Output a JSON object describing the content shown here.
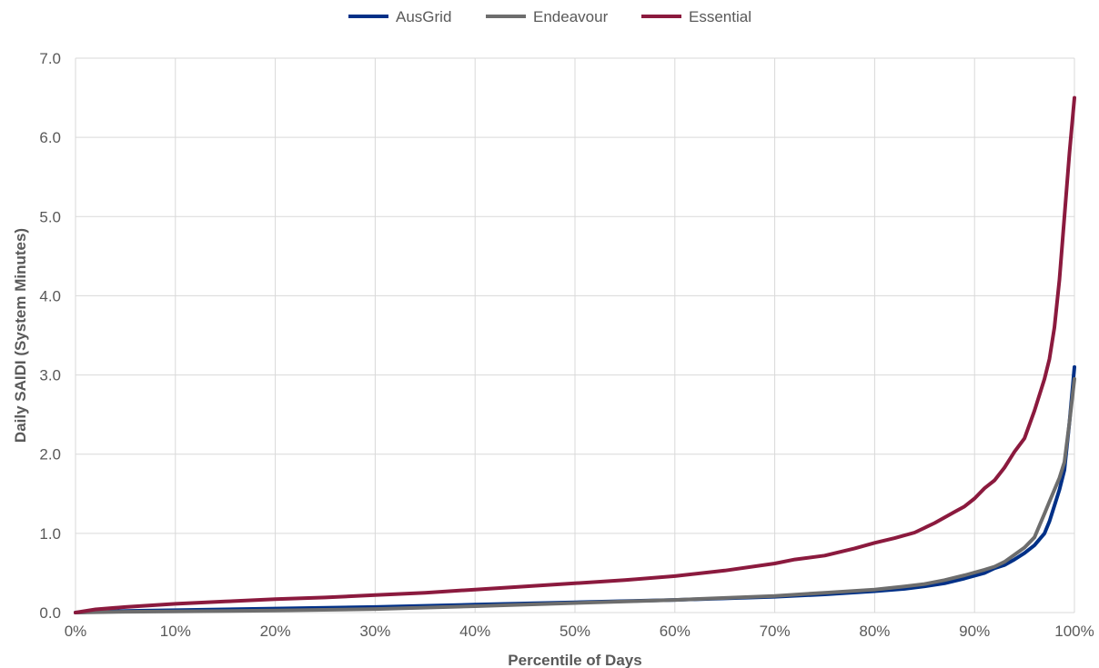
{
  "chart_data": {
    "type": "line",
    "title": "",
    "xlabel": "Percentile of Days",
    "ylabel": "Daily SAIDI (System Minutes)",
    "xlim": [
      0,
      100
    ],
    "ylim": [
      0,
      7
    ],
    "x_ticks": [
      0,
      10,
      20,
      30,
      40,
      50,
      60,
      70,
      80,
      90,
      100
    ],
    "x_tick_labels": [
      "0%",
      "10%",
      "20%",
      "30%",
      "40%",
      "50%",
      "60%",
      "70%",
      "80%",
      "90%",
      "100%"
    ],
    "y_ticks": [
      0,
      1,
      2,
      3,
      4,
      5,
      6,
      7
    ],
    "y_tick_labels": [
      "0.0",
      "1.0",
      "2.0",
      "3.0",
      "4.0",
      "5.0",
      "6.0",
      "7.0"
    ],
    "grid": true,
    "legend_position": "top-center",
    "series": [
      {
        "name": "AusGrid",
        "color": "#003087",
        "points": [
          [
            0,
            0
          ],
          [
            2,
            0.01
          ],
          [
            5,
            0.02
          ],
          [
            10,
            0.03
          ],
          [
            20,
            0.05
          ],
          [
            30,
            0.07
          ],
          [
            40,
            0.1
          ],
          [
            50,
            0.13
          ],
          [
            60,
            0.16
          ],
          [
            70,
            0.2
          ],
          [
            75,
            0.23
          ],
          [
            80,
            0.27
          ],
          [
            83,
            0.3
          ],
          [
            85,
            0.33
          ],
          [
            87,
            0.37
          ],
          [
            89,
            0.43
          ],
          [
            91,
            0.5
          ],
          [
            92,
            0.56
          ],
          [
            93,
            0.6
          ],
          [
            94,
            0.67
          ],
          [
            95,
            0.75
          ],
          [
            96,
            0.85
          ],
          [
            97,
            1.0
          ],
          [
            97.5,
            1.15
          ],
          [
            98,
            1.35
          ],
          [
            98.5,
            1.55
          ],
          [
            99,
            1.8
          ],
          [
            99.5,
            2.4
          ],
          [
            100,
            3.1
          ]
        ]
      },
      {
        "name": "Endeavour",
        "color": "#6d6d6d",
        "points": [
          [
            0,
            0
          ],
          [
            2,
            0.005
          ],
          [
            5,
            0.01
          ],
          [
            10,
            0.015
          ],
          [
            20,
            0.025
          ],
          [
            30,
            0.045
          ],
          [
            40,
            0.08
          ],
          [
            50,
            0.12
          ],
          [
            60,
            0.16
          ],
          [
            70,
            0.21
          ],
          [
            75,
            0.25
          ],
          [
            80,
            0.29
          ],
          [
            83,
            0.33
          ],
          [
            85,
            0.36
          ],
          [
            87,
            0.41
          ],
          [
            89,
            0.47
          ],
          [
            91,
            0.54
          ],
          [
            92,
            0.58
          ],
          [
            93,
            0.64
          ],
          [
            94,
            0.73
          ],
          [
            95,
            0.82
          ],
          [
            96,
            0.95
          ],
          [
            96.5,
            1.1
          ],
          [
            97,
            1.25
          ],
          [
            97.5,
            1.4
          ],
          [
            98,
            1.55
          ],
          [
            98.5,
            1.7
          ],
          [
            99,
            1.9
          ],
          [
            99.5,
            2.4
          ],
          [
            100,
            2.95
          ]
        ]
      },
      {
        "name": "Essential",
        "color": "#8b1a3e",
        "points": [
          [
            0,
            0
          ],
          [
            2,
            0.04
          ],
          [
            5,
            0.07
          ],
          [
            10,
            0.11
          ],
          [
            15,
            0.14
          ],
          [
            20,
            0.17
          ],
          [
            25,
            0.19
          ],
          [
            30,
            0.22
          ],
          [
            35,
            0.25
          ],
          [
            40,
            0.29
          ],
          [
            45,
            0.33
          ],
          [
            50,
            0.37
          ],
          [
            55,
            0.41
          ],
          [
            60,
            0.46
          ],
          [
            65,
            0.53
          ],
          [
            70,
            0.62
          ],
          [
            72,
            0.67
          ],
          [
            75,
            0.72
          ],
          [
            78,
            0.81
          ],
          [
            80,
            0.88
          ],
          [
            82,
            0.94
          ],
          [
            84,
            1.01
          ],
          [
            86,
            1.13
          ],
          [
            88,
            1.27
          ],
          [
            89,
            1.34
          ],
          [
            90,
            1.44
          ],
          [
            91,
            1.57
          ],
          [
            92,
            1.67
          ],
          [
            93,
            1.83
          ],
          [
            94,
            2.03
          ],
          [
            95,
            2.2
          ],
          [
            96,
            2.55
          ],
          [
            97,
            2.95
          ],
          [
            97.5,
            3.2
          ],
          [
            98,
            3.6
          ],
          [
            98.5,
            4.2
          ],
          [
            99,
            5.0
          ],
          [
            99.5,
            5.8
          ],
          [
            100,
            6.5
          ]
        ]
      }
    ]
  }
}
